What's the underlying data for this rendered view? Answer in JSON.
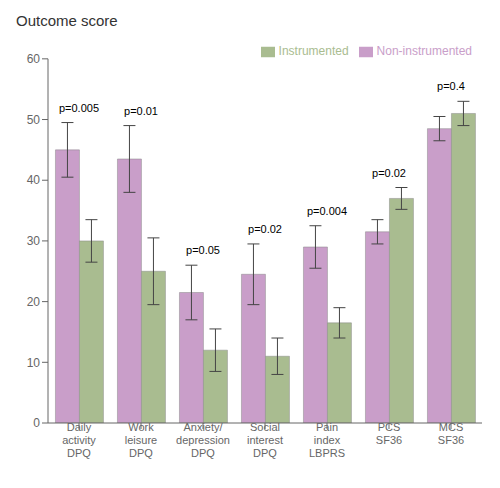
{
  "chart_data": {
    "type": "bar",
    "title": "Outcome score",
    "categories": [
      "Daily\nactivity\nDPQ",
      "Work\nleisure\nDPQ",
      "Anxiety/\ndepression\nDPQ",
      "Social\ninterest\nDPQ",
      "Pain\nindex\nLBPRS",
      "PCS\nSF36",
      "MCS\nSF36"
    ],
    "series": [
      {
        "name": "Non-instrumented",
        "color": "#C99EC9",
        "values": [
          45.0,
          43.5,
          21.5,
          24.5,
          29.0,
          31.5,
          48.5
        ],
        "errors": [
          4.5,
          5.5,
          4.5,
          5.0,
          3.5,
          2.0,
          2.0
        ]
      },
      {
        "name": "Instrumented",
        "color": "#A9BC90",
        "values": [
          30.0,
          25.0,
          12.0,
          11.0,
          16.5,
          37.0,
          51.0
        ],
        "errors": [
          3.5,
          5.5,
          3.5,
          3.0,
          2.5,
          1.8,
          2.0
        ]
      }
    ],
    "annotations": [
      "p=0.005",
      "p=0.01",
      "p=0.05",
      "p=0.02",
      "p=0.004",
      "p=0.02",
      "p=0.4"
    ],
    "ylim": [
      0,
      60
    ],
    "yticks": [
      0,
      10,
      20,
      30,
      40,
      50,
      60
    ],
    "grid": false,
    "legend": "upper right"
  }
}
